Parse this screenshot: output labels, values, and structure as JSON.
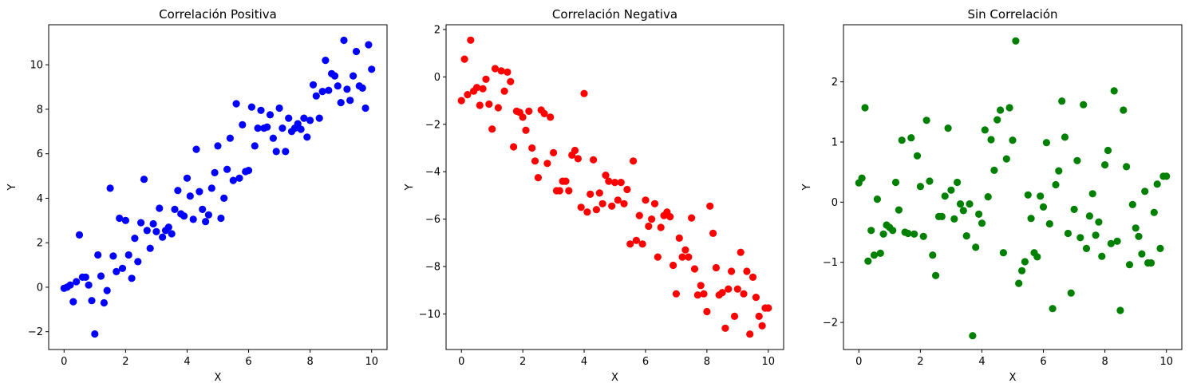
{
  "chart_data": [
    {
      "type": "scatter",
      "title": "Correlación Positiva",
      "xlabel": "X",
      "ylabel": "Y",
      "color": "#0000ff",
      "xlim": [
        -0.5,
        10.5
      ],
      "ylim": [
        -2.8,
        11.8
      ],
      "xticks": [
        "0",
        "2",
        "4",
        "6",
        "8",
        "10"
      ],
      "yticks": [
        "−2",
        "0",
        "2",
        "4",
        "6",
        "8",
        "10"
      ],
      "grid": false,
      "x": [
        0,
        0.1,
        0.2,
        0.3,
        0.4,
        0.5,
        0.6,
        0.7,
        0.8,
        0.9,
        1.0,
        1.1,
        1.2,
        1.3,
        1.4,
        1.5,
        1.6,
        1.7,
        1.8,
        1.9,
        2.0,
        2.1,
        2.2,
        2.3,
        2.4,
        2.5,
        2.6,
        2.7,
        2.8,
        2.9,
        3.0,
        3.1,
        3.2,
        3.3,
        3.4,
        3.5,
        3.6,
        3.7,
        3.8,
        3.9,
        4.0,
        4.1,
        4.2,
        4.3,
        4.4,
        4.5,
        4.6,
        4.7,
        4.8,
        4.9,
        5.0,
        5.1,
        5.2,
        5.3,
        5.4,
        5.5,
        5.6,
        5.7,
        5.8,
        5.9,
        6.0,
        6.1,
        6.2,
        6.3,
        6.4,
        6.5,
        6.6,
        6.7,
        6.8,
        6.9,
        7.0,
        7.1,
        7.2,
        7.3,
        7.4,
        7.5,
        7.6,
        7.7,
        7.8,
        7.9,
        8.0,
        8.1,
        8.2,
        8.3,
        8.4,
        8.5,
        8.6,
        8.7,
        8.8,
        8.9,
        9.0,
        9.1,
        9.2,
        9.3,
        9.4,
        9.5,
        9.6,
        9.7,
        9.8,
        9.9,
        10.0
      ],
      "y": [
        -0.05,
        0.0,
        0.1,
        -0.65,
        0.25,
        2.35,
        0.45,
        0.45,
        0.1,
        -0.6,
        -2.1,
        1.45,
        0.5,
        -0.7,
        -0.15,
        4.45,
        1.4,
        0.7,
        3.1,
        0.85,
        3.0,
        1.45,
        0.4,
        2.2,
        1.15,
        2.9,
        4.85,
        2.55,
        1.75,
        2.85,
        2.5,
        3.55,
        2.25,
        2.55,
        2.7,
        2.4,
        3.5,
        4.35,
        3.3,
        3.2,
        4.9,
        4.1,
        3.05,
        6.2,
        4.3,
        3.5,
        2.95,
        3.25,
        4.45,
        5.15,
        6.35,
        3.1,
        4.0,
        5.3,
        6.7,
        4.8,
        8.25,
        4.9,
        7.3,
        5.2,
        5.25,
        8.1,
        6.35,
        7.15,
        7.95,
        7.15,
        7.2,
        7.75,
        6.7,
        6.1,
        8.05,
        7.15,
        6.1,
        7.6,
        7.0,
        7.15,
        7.35,
        7.1,
        7.6,
        6.75,
        7.5,
        9.1,
        8.6,
        7.6,
        8.8,
        10.2,
        8.85,
        9.6,
        9.5,
        9.05,
        8.3,
        11.1,
        8.9,
        8.4,
        9.5,
        10.6,
        9.05,
        8.95,
        8.05,
        10.9,
        9.8
      ]
    },
    {
      "type": "scatter",
      "title": "Correlación Negativa",
      "xlabel": "X",
      "ylabel": "Y",
      "color": "#ff0000",
      "xlim": [
        -0.5,
        10.5
      ],
      "ylim": [
        -11.5,
        2.2
      ],
      "xticks": [
        "0",
        "2",
        "4",
        "6",
        "8",
        "10"
      ],
      "yticks": [
        "−10",
        "−8",
        "−6",
        "−4",
        "−2",
        "0",
        "2"
      ],
      "grid": false,
      "x": [
        0,
        0.1,
        0.2,
        0.3,
        0.4,
        0.5,
        0.6,
        0.7,
        0.8,
        0.9,
        1.0,
        1.1,
        1.2,
        1.3,
        1.4,
        1.5,
        1.6,
        1.7,
        1.8,
        1.9,
        2.0,
        2.1,
        2.2,
        2.3,
        2.4,
        2.5,
        2.6,
        2.7,
        2.8,
        2.9,
        3.0,
        3.1,
        3.2,
        3.3,
        3.4,
        3.5,
        3.6,
        3.7,
        3.8,
        3.9,
        4.0,
        4.1,
        4.2,
        4.3,
        4.4,
        4.5,
        4.6,
        4.7,
        4.8,
        4.9,
        5.0,
        5.1,
        5.2,
        5.3,
        5.4,
        5.5,
        5.6,
        5.7,
        5.8,
        5.9,
        6.0,
        6.1,
        6.2,
        6.3,
        6.4,
        6.5,
        6.6,
        6.7,
        6.8,
        6.9,
        7.0,
        7.1,
        7.2,
        7.3,
        7.4,
        7.5,
        7.6,
        7.7,
        7.8,
        7.9,
        8.0,
        8.1,
        8.2,
        8.3,
        8.4,
        8.5,
        8.6,
        8.7,
        8.8,
        8.9,
        9.0,
        9.1,
        9.2,
        9.3,
        9.4,
        9.5,
        9.6,
        9.7,
        9.8,
        9.9,
        10.0
      ],
      "y": [
        -1.0,
        0.75,
        -0.75,
        1.55,
        -0.6,
        -0.45,
        -1.2,
        -0.5,
        -0.1,
        -1.15,
        -2.2,
        0.35,
        -1.3,
        0.25,
        -0.6,
        0.2,
        -0.2,
        -2.95,
        -1.45,
        -1.5,
        -1.7,
        -2.25,
        -1.45,
        -3.0,
        -3.55,
        -4.25,
        -1.4,
        -1.55,
        -3.65,
        -1.7,
        -3.2,
        -4.8,
        -4.8,
        -4.4,
        -4.4,
        -4.8,
        -3.3,
        -3.1,
        -3.45,
        -5.5,
        -0.7,
        -5.7,
        -4.95,
        -3.5,
        -5.6,
        -4.9,
        -5.35,
        -4.15,
        -4.4,
        -5.45,
        -4.45,
        -5.2,
        -4.45,
        -5.35,
        -4.75,
        -7.05,
        -3.55,
        -6.9,
        -5.85,
        -7.05,
        -5.2,
        -6.3,
        -6.0,
        -5.35,
        -7.6,
        -6.35,
        -5.85,
        -5.7,
        -5.9,
        -7.95,
        -9.15,
        -6.8,
        -7.6,
        -7.3,
        -7.6,
        -5.95,
        -8.1,
        -9.2,
        -8.8,
        -9.15,
        -9.9,
        -5.45,
        -6.6,
        -8.05,
        -9.2,
        -9.1,
        -10.6,
        -8.95,
        -8.2,
        -10.1,
        -8.95,
        -7.4,
        -9.15,
        -8.2,
        -10.85,
        -8.45,
        -9.3,
        -10.1,
        -10.5,
        -9.75,
        -9.75
      ]
    },
    {
      "type": "scatter",
      "title": "Sin Correlación",
      "xlabel": "X",
      "ylabel": "Y",
      "color": "#008000",
      "xlim": [
        -0.5,
        10.5
      ],
      "ylim": [
        -2.45,
        2.95
      ],
      "xticks": [
        "0",
        "2",
        "4",
        "6",
        "8",
        "10"
      ],
      "yticks": [
        "−2",
        "−1",
        "0",
        "1",
        "2"
      ],
      "grid": false,
      "x": [
        0,
        0.1,
        0.2,
        0.3,
        0.4,
        0.5,
        0.6,
        0.7,
        0.8,
        0.9,
        1.0,
        1.1,
        1.2,
        1.3,
        1.4,
        1.5,
        1.6,
        1.7,
        1.8,
        1.9,
        2.0,
        2.1,
        2.2,
        2.3,
        2.4,
        2.5,
        2.6,
        2.7,
        2.8,
        2.9,
        3.0,
        3.1,
        3.2,
        3.3,
        3.4,
        3.5,
        3.6,
        3.7,
        3.8,
        3.9,
        4.0,
        4.1,
        4.2,
        4.3,
        4.4,
        4.5,
        4.6,
        4.7,
        4.8,
        4.9,
        5.0,
        5.1,
        5.2,
        5.3,
        5.4,
        5.5,
        5.6,
        5.7,
        5.8,
        5.9,
        6.0,
        6.1,
        6.2,
        6.3,
        6.4,
        6.5,
        6.6,
        6.7,
        6.8,
        6.9,
        7.0,
        7.1,
        7.2,
        7.3,
        7.4,
        7.5,
        7.6,
        7.7,
        7.8,
        7.9,
        8.0,
        8.1,
        8.2,
        8.3,
        8.4,
        8.5,
        8.6,
        8.7,
        8.8,
        8.9,
        9.0,
        9.1,
        9.2,
        9.3,
        9.4,
        9.5,
        9.6,
        9.7,
        9.8,
        9.9,
        10.0
      ],
      "y": [
        0.32,
        0.4,
        1.57,
        -0.98,
        -0.47,
        -0.88,
        0.05,
        -0.85,
        -0.53,
        -0.38,
        -0.42,
        -0.47,
        0.33,
        -0.13,
        1.03,
        -0.5,
        -0.52,
        1.07,
        -0.53,
        0.77,
        0.26,
        -0.57,
        1.36,
        0.35,
        -0.88,
        -1.22,
        -0.24,
        -0.24,
        0.1,
        1.23,
        0.2,
        -0.28,
        0.33,
        -0.03,
        -0.14,
        -0.56,
        -0.03,
        -2.22,
        -0.75,
        -0.2,
        -0.35,
        1.2,
        0.09,
        1.04,
        0.53,
        1.37,
        1.53,
        -0.84,
        0.72,
        1.57,
        1.03,
        2.68,
        -1.35,
        -1.14,
        -0.99,
        0.12,
        -0.27,
        -0.84,
        -0.91,
        0.1,
        -0.08,
        0.99,
        -0.36,
        -1.77,
        0.29,
        0.52,
        1.68,
        1.08,
        -0.52,
        -1.51,
        -0.12,
        0.69,
        -0.59,
        1.62,
        -0.77,
        -0.23,
        0.14,
        -0.55,
        -0.33,
        -0.9,
        0.62,
        0.86,
        -0.69,
        1.85,
        -0.65,
        -1.8,
        1.53,
        0.59,
        -1.04,
        -0.04,
        -0.43,
        -0.57,
        -0.86,
        0.18,
        -1.01,
        -1.01,
        -0.17,
        0.3,
        -0.77,
        0.43,
        0.43
      ]
    }
  ]
}
